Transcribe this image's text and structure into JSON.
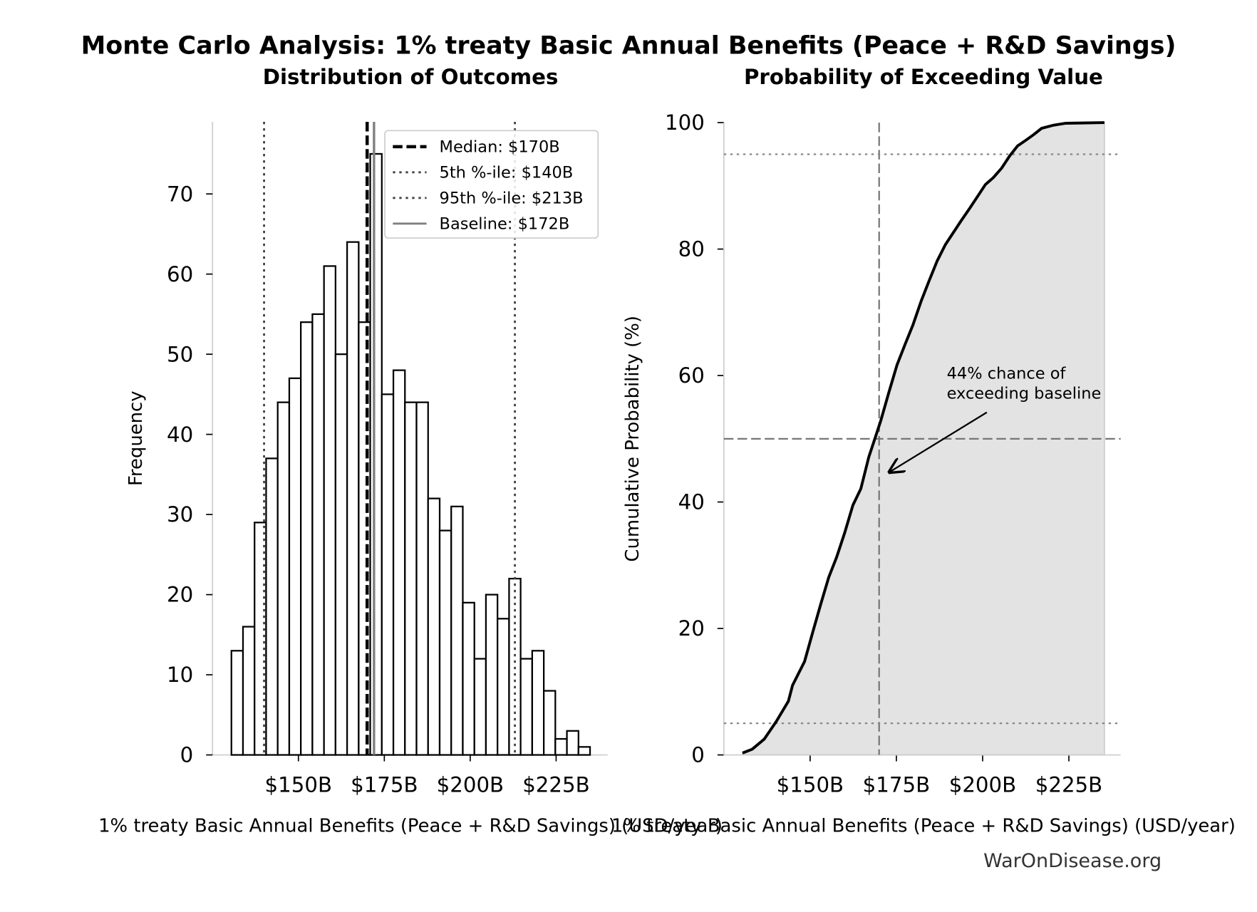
{
  "title": "Monte Carlo Analysis: 1% treaty Basic Annual Benefits (Peace + R&D Savings)",
  "watermark": "WarOnDisease.org",
  "chart_data": [
    {
      "type": "histogram",
      "title": "Distribution of Outcomes",
      "x_label": "1% treaty Basic Annual Benefits (Peace + R&D Savings) (USD/year)",
      "y_label": "Frequency",
      "bins": [
        130.5,
        133.87,
        137.23,
        140.6,
        143.97,
        147.34,
        150.7,
        154.07,
        157.44,
        160.8,
        164.17,
        167.54,
        170.9,
        174.27,
        177.64,
        181.0,
        184.37,
        187.74,
        191.11,
        194.47,
        197.84,
        201.21,
        204.57,
        207.94,
        211.31,
        214.67,
        218.04,
        221.41,
        224.77,
        228.14,
        231.51,
        234.87
      ],
      "values": [
        13,
        16,
        29,
        37,
        44,
        47,
        54,
        55,
        61,
        50,
        64,
        54,
        75,
        45,
        48,
        44,
        44,
        32,
        28,
        31,
        19,
        12,
        20,
        17,
        22,
        12,
        13,
        8,
        2,
        3,
        1
      ],
      "color": "#ffffff",
      "edge_color": "#000000",
      "xlim": [
        125,
        240
      ],
      "ylim": [
        0,
        79
      ],
      "xticks": [
        {
          "value": 150,
          "label": "$150B"
        },
        {
          "value": 175,
          "label": "$175B"
        },
        {
          "value": 200,
          "label": "$200B"
        },
        {
          "value": 225,
          "label": "$225B"
        }
      ],
      "yticks": [
        0,
        10,
        20,
        30,
        40,
        50,
        60,
        70
      ],
      "legend": "upper right",
      "reference_lines": [
        {
          "name": "Median: $170B",
          "value": 170,
          "color": "#000000",
          "style": "dashed"
        },
        {
          "name": "5th %-ile: $140B",
          "value": 140,
          "color": "#444444",
          "style": "dotted"
        },
        {
          "name": "95th %-ile: $213B",
          "value": 213,
          "color": "#444444",
          "style": "dotted"
        },
        {
          "name": "Baseline: $172B",
          "value": 172,
          "color": "#808080",
          "style": "solid"
        }
      ]
    },
    {
      "type": "line",
      "title": "Probability of Exceeding Value",
      "x_label": "1% treaty Basic Annual Benefits (Peace + R&D Savings) (USD/year)",
      "y_label": "Cumulative Probability (%)",
      "x": [
        130.4,
        133.2,
        136.7,
        140.2,
        143.7,
        144.9,
        148.4,
        150.7,
        153.0,
        155.4,
        157.7,
        160.0,
        162.4,
        164.7,
        167.0,
        169.3,
        170.5,
        172.8,
        175.2,
        177.5,
        179.8,
        182.2,
        184.5,
        186.8,
        189.2,
        191.5,
        193.8,
        196.2,
        198.5,
        200.8,
        203.1,
        205.5,
        207.8,
        210.1,
        212.5,
        214.8,
        217.1,
        220.6,
        224.1,
        235.3
      ],
      "values": [
        0.3,
        0.9,
        2.5,
        5.3,
        8.5,
        11.0,
        14.8,
        19.3,
        23.7,
        28.1,
        31.3,
        35.1,
        39.5,
        42.1,
        47.1,
        50.9,
        52.9,
        57.3,
        61.7,
        64.9,
        68.0,
        71.8,
        75.0,
        78.1,
        80.7,
        82.6,
        84.5,
        86.4,
        88.3,
        90.2,
        91.3,
        92.8,
        94.7,
        96.3,
        97.2,
        98.1,
        99.1,
        99.6,
        99.9,
        100
      ],
      "color": "#000000",
      "fill": "#e3e3e3",
      "xlim": [
        125,
        240
      ],
      "ylim": [
        0,
        100
      ],
      "xticks": [
        {
          "value": 150,
          "label": "$150B"
        },
        {
          "value": 175,
          "label": "$175B"
        },
        {
          "value": 200,
          "label": "$200B"
        },
        {
          "value": 225,
          "label": "$225B"
        }
      ],
      "yticks": [
        0,
        20,
        40,
        60,
        80,
        100
      ],
      "vlines": [
        {
          "value": 170,
          "style": "dashed",
          "color": "#777777"
        }
      ],
      "hlines": [
        {
          "value": 50,
          "style": "dashed",
          "color": "#777777"
        },
        {
          "value": 95,
          "style": "dotted",
          "color": "#888888"
        },
        {
          "value": 5,
          "style": "dotted",
          "color": "#888888"
        }
      ],
      "annotation": {
        "lines": [
          "44% chance of",
          "exceeding baseline"
        ],
        "xy": [
          172.6,
          44.6
        ],
        "xytext": [
          189.6,
          59.5
        ]
      }
    }
  ]
}
